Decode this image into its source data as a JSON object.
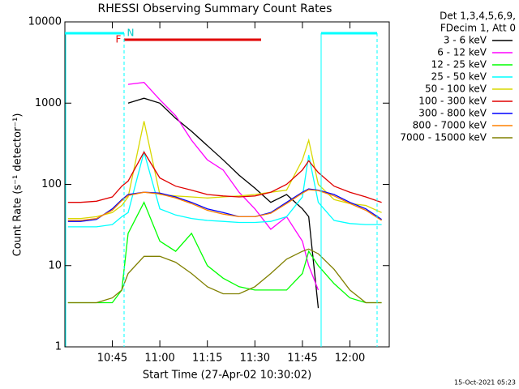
{
  "chart_data": {
    "type": "line",
    "title": "RHESSI Observing Summary Count Rates",
    "x_label": "Start Time (27-Apr-02 10:30:02)",
    "y_label": "Count Rate (s⁻¹ detector⁻¹)",
    "footer": "15-Oct-2021 05:23",
    "legend_title": [
      "Det 1,3,4,5,6,9,",
      "FDecim 1, Att 0"
    ],
    "flags": [
      "N",
      "F"
    ],
    "log_y": true,
    "xlim": [
      "10:30:02",
      "12:12:24"
    ],
    "xticks": [
      "10:45",
      "11:00",
      "11:15",
      "11:30",
      "11:45",
      "12:00"
    ],
    "ylim": [
      1,
      10000
    ],
    "yticks": [
      1,
      10,
      100,
      1000,
      10000
    ],
    "x": [
      "10:31",
      "10:35",
      "10:40",
      "10:45",
      "10:48",
      "10:50",
      "10:55",
      "11:00",
      "11:05",
      "11:10",
      "11:15",
      "11:20",
      "11:25",
      "11:30",
      "11:35",
      "11:40",
      "11:45",
      "11:47",
      "11:50",
      "11:55",
      "12:00",
      "12:05",
      "12:10"
    ],
    "series": [
      {
        "name": "3 - 6 keV",
        "color": "#000000",
        "values": [
          null,
          null,
          null,
          null,
          null,
          1000,
          1150,
          1000,
          650,
          450,
          300,
          200,
          130,
          90,
          60,
          75,
          50,
          40,
          3,
          null,
          null,
          null,
          null
        ]
      },
      {
        "name": "6 - 12 keV",
        "color": "#ff00ff",
        "values": [
          null,
          null,
          null,
          null,
          null,
          1700,
          1800,
          1100,
          700,
          350,
          200,
          150,
          80,
          50,
          28,
          40,
          20,
          10,
          5,
          null,
          null,
          null,
          null
        ]
      },
      {
        "name": "12 - 25 keV",
        "color": "#00ff00",
        "values": [
          3.5,
          3.5,
          3.5,
          3.5,
          5,
          25,
          60,
          20,
          15,
          25,
          10,
          7,
          5.5,
          5,
          5,
          5,
          8,
          15,
          10,
          6,
          4,
          3.5,
          3.5
        ]
      },
      {
        "name": "25 - 50 keV",
        "color": "#00ffff",
        "values": [
          30,
          30,
          30,
          32,
          40,
          45,
          250,
          50,
          42,
          38,
          36,
          35,
          34,
          34,
          35,
          40,
          70,
          230,
          60,
          36,
          33,
          32,
          32
        ]
      },
      {
        "name": "50 - 100 keV",
        "color": "#d8d800",
        "values": [
          38,
          38,
          40,
          45,
          55,
          70,
          600,
          75,
          72,
          70,
          68,
          70,
          72,
          75,
          80,
          85,
          200,
          350,
          100,
          65,
          58,
          55,
          45
        ]
      },
      {
        "name": "100 - 300 keV",
        "color": "#e00000",
        "values": [
          60,
          60,
          62,
          70,
          95,
          110,
          250,
          120,
          95,
          85,
          75,
          72,
          70,
          72,
          80,
          100,
          150,
          195,
          140,
          95,
          80,
          70,
          60
        ]
      },
      {
        "name": "300 - 800 keV",
        "color": "#0000ff",
        "values": [
          35,
          35,
          37,
          50,
          65,
          75,
          80,
          78,
          70,
          60,
          50,
          45,
          40,
          40,
          45,
          60,
          80,
          88,
          85,
          75,
          60,
          50,
          37
        ]
      },
      {
        "name": "800 - 7000 keV",
        "color": "#ff8000",
        "values": [
          36,
          36,
          38,
          48,
          63,
          73,
          80,
          76,
          68,
          58,
          48,
          43,
          40,
          40,
          44,
          58,
          78,
          86,
          84,
          72,
          58,
          48,
          36
        ]
      },
      {
        "name": "7000 - 15000 keV",
        "color": "#808000",
        "values": [
          3.5,
          3.5,
          3.5,
          4,
          5,
          8,
          13,
          13,
          11,
          8,
          5.5,
          4.5,
          4.5,
          5.5,
          8,
          12,
          15,
          16,
          14,
          9,
          5,
          3.5,
          3.5
        ]
      }
    ]
  }
}
